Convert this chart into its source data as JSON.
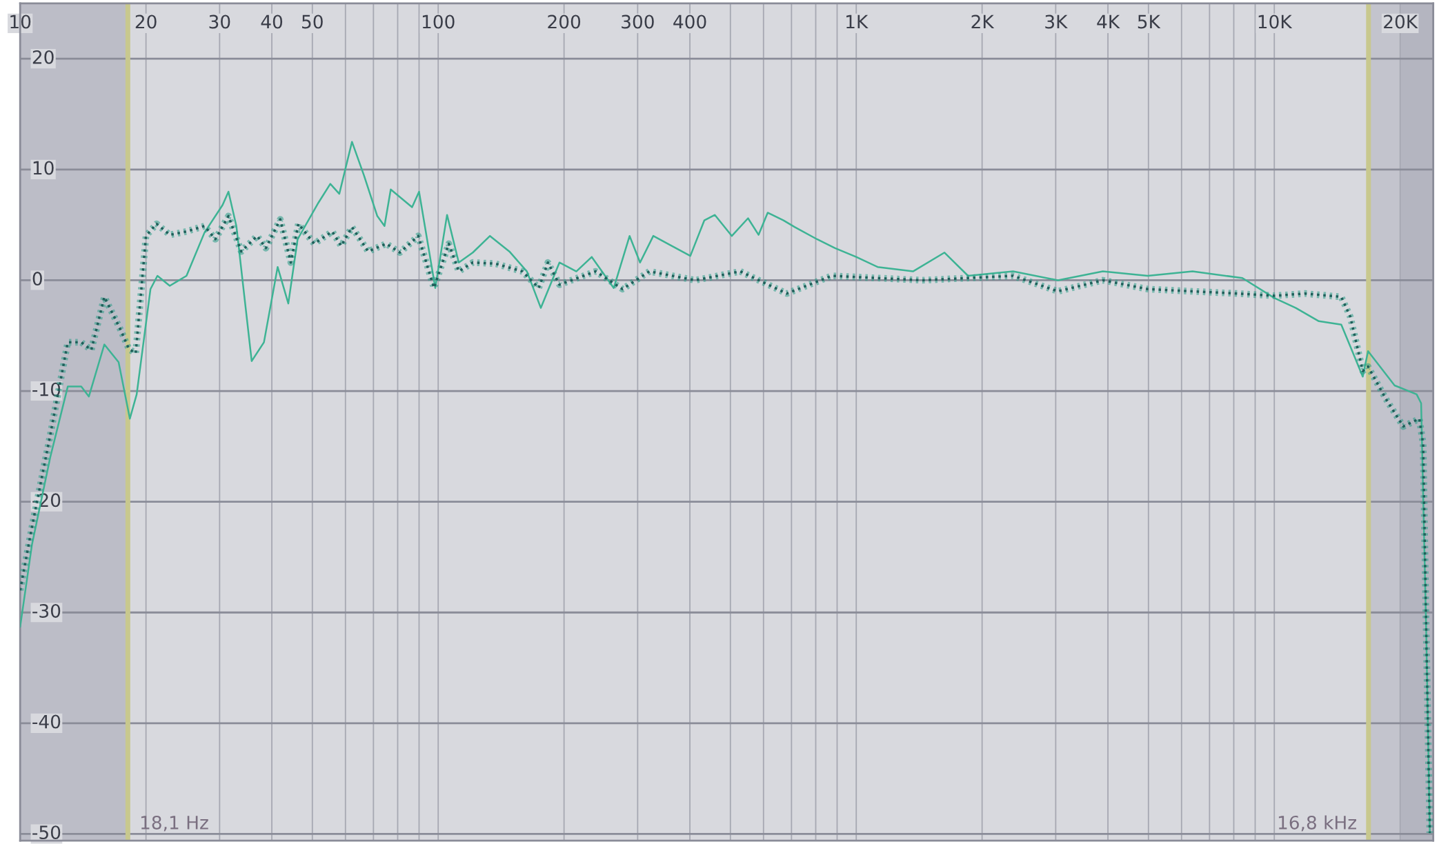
{
  "chart_data": {
    "type": "line",
    "log": "x",
    "xlim": [
      10,
      24000
    ],
    "ylim": [
      -50.6,
      25
    ],
    "xticks": [
      10,
      20,
      30,
      40,
      50,
      {
        "value": 60,
        "label": null
      },
      {
        "value": 70,
        "label": null
      },
      {
        "value": 80,
        "label": null
      },
      {
        "value": 90,
        "label": null
      },
      100,
      200,
      300,
      400,
      {
        "value": 500,
        "label": null
      },
      {
        "value": 600,
        "label": null
      },
      {
        "value": 700,
        "label": null
      },
      {
        "value": 800,
        "label": null
      },
      {
        "value": 900,
        "label": null
      },
      {
        "value": 1000,
        "label": "1K"
      },
      {
        "value": 2000,
        "label": "2K"
      },
      {
        "value": 3000,
        "label": "3K"
      },
      {
        "value": 4000,
        "label": "4K"
      },
      {
        "value": 5000,
        "label": "5K"
      },
      {
        "value": 6000,
        "label": null
      },
      {
        "value": 7000,
        "label": null
      },
      {
        "value": 8000,
        "label": null
      },
      {
        "value": 9000,
        "label": null
      },
      {
        "value": 10000,
        "label": "10K"
      },
      {
        "value": 20000,
        "label": "20K"
      }
    ],
    "yticks": [
      -50,
      -40,
      -30,
      -20,
      -10,
      0,
      10,
      20
    ],
    "grid": true,
    "bands": [
      {
        "axis": "x",
        "from": 10,
        "to": 18.1,
        "color": "#bcbdc7"
      },
      {
        "axis": "x",
        "from": 16800,
        "to": 20000,
        "color": "#c3c4cd"
      },
      {
        "axis": "x",
        "from": 20000,
        "to": 24000,
        "color": "#b4b5c0"
      }
    ],
    "ref_lines": [
      {
        "axis": "x",
        "value": 18.1,
        "label": "18,1 Hz",
        "color": "#c8c88e"
      },
      {
        "axis": "x",
        "value": 16800,
        "label": "16,8 kHz",
        "color": "#c8c88e"
      }
    ],
    "series": [
      {
        "color": "#3db394",
        "line_style": "solid",
        "x": [
          10,
          10.67,
          11.8,
          13.0,
          14.0,
          14.6,
          15.9,
          17.2,
          18.3,
          19.0,
          20.5,
          21.3,
          22.8,
          25.0,
          27.6,
          30.5,
          31.5,
          32.9,
          35.8,
          38.3,
          41.3,
          43.8,
          46.1,
          51.7,
          55.2,
          58.0,
          62.2,
          66.4,
          71.5,
          74.4,
          77.0,
          86.6,
          90.0,
          96.9,
          98.4,
          105,
          112,
          121,
          133,
          148,
          163,
          176,
          195,
          214,
          233,
          263,
          287,
          304,
          327,
          362,
          401,
          433,
          459,
          504,
          551,
          584,
          614,
          670,
          713,
          806,
          890,
          1000,
          1125,
          1367,
          1626,
          1851,
          2372,
          3037,
          3889,
          4980,
          6375,
          8390,
          10000,
          11260,
          12780,
          14460,
          16280,
          16760,
          19400,
          21900,
          22450,
          23100,
          23550
        ],
        "values": [
          -31.3,
          -23.9,
          -16,
          -9.6,
          -9.6,
          -10.5,
          -5.8,
          -7.4,
          -12.5,
          -10.3,
          -0.8,
          0.4,
          -0.5,
          0.4,
          4.3,
          6.8,
          8.0,
          4.9,
          -7.3,
          -5.6,
          1.2,
          -2.1,
          3.7,
          7.0,
          8.7,
          7.8,
          12.5,
          9.5,
          5.8,
          4.9,
          8.2,
          6.6,
          8.0,
          0.8,
          -0.7,
          5.9,
          1.6,
          2.5,
          4.0,
          2.6,
          0.8,
          -2.5,
          1.6,
          0.8,
          2.1,
          -0.7,
          4.0,
          1.6,
          4.0,
          3.1,
          2.2,
          5.4,
          5.9,
          4.0,
          5.6,
          4.1,
          6.1,
          5.4,
          4.8,
          3.7,
          2.9,
          2.1,
          1.2,
          0.8,
          2.5,
          0.4,
          0.8,
          0,
          0.8,
          0.4,
          0.8,
          0.2,
          -1.6,
          -2.5,
          -3.7,
          -4.0,
          -8.7,
          -6.4,
          -9.5,
          -10.3,
          -11.1,
          -32.1,
          -49.9
        ]
      },
      {
        "color": "#2a9d86",
        "line_style": "dotted",
        "x": [
          10,
          10.67,
          11.8,
          13.0,
          14.0,
          14.8,
          15.9,
          17.4,
          18.2,
          18.9,
          20.0,
          21.2,
          22.8,
          25.0,
          27.6,
          29.3,
          31.5,
          33.8,
          36.9,
          38.7,
          41.9,
          44.4,
          46.3,
          50.5,
          55.8,
          58.6,
          62.2,
          68.0,
          75.1,
          81,
          89.6,
          97.7,
          106,
          112,
          121,
          137,
          159,
          174,
          183,
          195,
          238,
          276,
          320,
          412,
          528,
          682,
          874,
          1440,
          2372,
          3037,
          3889,
          4980,
          6375,
          8160,
          10000,
          11830,
          14460,
          15200,
          16280,
          16760,
          18480,
          20350,
          22230,
          22700,
          23100,
          23550
        ],
        "values": [
          -28,
          -22.3,
          -14.0,
          -5.6,
          -5.6,
          -6.3,
          -1.5,
          -4.5,
          -6.2,
          -6.6,
          4.0,
          5.1,
          4.1,
          4.4,
          4.9,
          3.7,
          5.8,
          2.6,
          4.0,
          2.9,
          5.5,
          1.6,
          5.1,
          3.3,
          4.4,
          3.1,
          4.8,
          2.6,
          3.3,
          2.5,
          4.0,
          -0.7,
          3.3,
          0.8,
          1.6,
          1.5,
          0.8,
          -0.7,
          1.6,
          -0.4,
          0.8,
          -0.8,
          0.8,
          0,
          0.8,
          -1.2,
          0.4,
          0,
          0.4,
          -1.0,
          0,
          -0.8,
          -1.0,
          -1.2,
          -1.4,
          -1.2,
          -1.5,
          -3.3,
          -8.2,
          -7.8,
          -10.7,
          -13.2,
          -12.5,
          -14.8,
          -32.1,
          -49.9
        ]
      }
    ]
  }
}
